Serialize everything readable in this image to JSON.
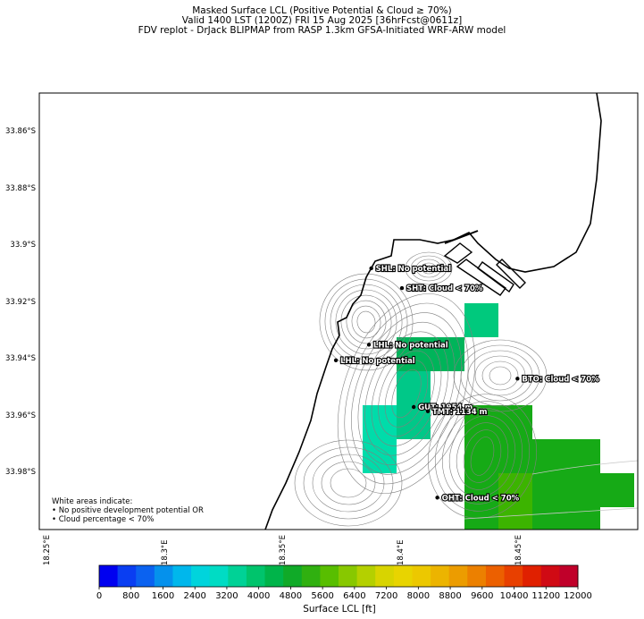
{
  "title": {
    "line1": "Masked Surface LCL (Positive Potential & Cloud ≥ 70%)",
    "line2": "Valid 1400 LST (1200Z) FRI 15 Aug 2025 [36hrFcst@0611z]",
    "line3": "FDV replot - DrJack BLIPMAP from RASP 1.3km GFSA-Initiated WRF-ARW model"
  },
  "lat_labels": [
    "33.86°S",
    "33.88°S",
    "33.9°S",
    "33.92°S",
    "33.94°S",
    "33.96°S",
    "33.98°S"
  ],
  "lon_labels": [
    "18.25°E",
    "18.3°E",
    "18.35°E",
    "18.4°E",
    "18.45°E"
  ],
  "stations": [
    {
      "label": "SHL: No potential",
      "lon": 18.387,
      "lat": -33.908
    },
    {
      "label": "SHT: Cloud < 70%",
      "lon": 18.4,
      "lat": -33.915
    },
    {
      "label": "LHL: No potential",
      "lon": 18.386,
      "lat": -33.935
    },
    {
      "label": "LHL: No potential",
      "lon": 18.372,
      "lat": -33.9405
    },
    {
      "label": "BTO: Cloud < 70%",
      "lon": 18.449,
      "lat": -33.947
    },
    {
      "label": "GUT: 1954 m",
      "lon": 18.405,
      "lat": -33.957
    },
    {
      "label": "TMT: 1134 m",
      "lon": 18.411,
      "lat": -33.9585
    },
    {
      "label": "OHT: Cloud < 70%",
      "lon": 18.415,
      "lat": -33.989
    }
  ],
  "legend_note": {
    "line1": "White areas indicate:",
    "line2": "• No positive development potential OR",
    "line3": "• Cloud percentage < 70%"
  },
  "colorbar": {
    "label": "Surface LCL [ft]",
    "ticks": [
      "0",
      "800",
      "1600",
      "2400",
      "3200",
      "4000",
      "4800",
      "5600",
      "6400",
      "7200",
      "8000",
      "8800",
      "9600",
      "10400",
      "11200",
      "12000"
    ],
    "colors": [
      "#0000f0",
      "#0a3ef2",
      "#0b62f0",
      "#0591ec",
      "#00b7ec",
      "#00d4dc",
      "#00dcc4",
      "#00d296",
      "#00c46c",
      "#00b44a",
      "#10aa28",
      "#30b010",
      "#58be00",
      "#88c800",
      "#b4d000",
      "#d8d400",
      "#e8d400",
      "#ecc800",
      "#ecb400",
      "#ec9c00",
      "#ec8000",
      "#ec6000",
      "#e84000",
      "#e02000",
      "#d00a14",
      "#c0002a"
    ]
  },
  "map_colors": {
    "coast": "#000000",
    "contour": "#808080",
    "cell_dark_teal": "#00c97d",
    "cell_green_teal": "#00b45a",
    "cell_cyan_teal": "#00dcaa",
    "cell_mid_teal": "#00c888",
    "cell_green": "#16aa16",
    "cell_light_green": "#3cb400"
  }
}
